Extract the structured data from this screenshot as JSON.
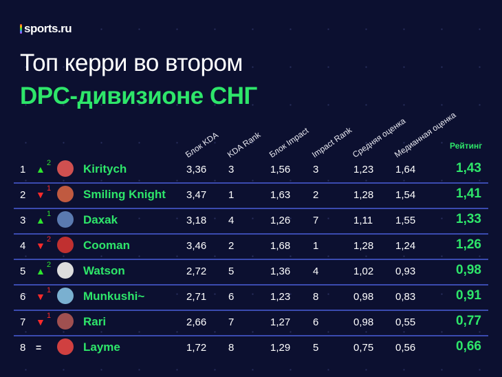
{
  "brand": "sports.ru",
  "title_line1": "Топ керри во втором",
  "title_line2": "DPC-дивизионе СНГ",
  "headers": [
    "Блок KDA",
    "KDA Rank",
    "Блок Impact",
    "Impact Rank",
    "Средняя оценка",
    "Медианная оценка",
    "Рейтинг"
  ],
  "rows": [
    {
      "rank": "1",
      "trend": "▲",
      "dir": "up",
      "change": "2",
      "name": "Kiritych",
      "kda": "3,36",
      "kda_rank": "3",
      "impact": "1,56",
      "impact_rank": "3",
      "avg": "1,23",
      "median": "1,64",
      "rating": "1,43"
    },
    {
      "rank": "2",
      "trend": "▼",
      "dir": "dn",
      "change": "1",
      "name": "Smiling Knight",
      "kda": "3,47",
      "kda_rank": "1",
      "impact": "1,63",
      "impact_rank": "2",
      "avg": "1,28",
      "median": "1,54",
      "rating": "1,41"
    },
    {
      "rank": "3",
      "trend": "▲",
      "dir": "up",
      "change": "1",
      "name": "Daxak",
      "kda": "3,18",
      "kda_rank": "4",
      "impact": "1,26",
      "impact_rank": "7",
      "avg": "1,11",
      "median": "1,55",
      "rating": "1,33"
    },
    {
      "rank": "4",
      "trend": "▼",
      "dir": "dn",
      "change": "2",
      "name": "Cooman",
      "kda": "3,46",
      "kda_rank": "2",
      "impact": "1,68",
      "impact_rank": "1",
      "avg": "1,28",
      "median": "1,24",
      "rating": "1,26"
    },
    {
      "rank": "5",
      "trend": "▲",
      "dir": "up",
      "change": "2",
      "name": "Watson",
      "kda": "2,72",
      "kda_rank": "5",
      "impact": "1,36",
      "impact_rank": "4",
      "avg": "1,02",
      "median": "0,93",
      "rating": "0,98"
    },
    {
      "rank": "6",
      "trend": "▼",
      "dir": "dn",
      "change": "1",
      "name": "Munkushi~",
      "kda": "2,71",
      "kda_rank": "6",
      "impact": "1,23",
      "impact_rank": "8",
      "avg": "0,98",
      "median": "0,83",
      "rating": "0,91"
    },
    {
      "rank": "7",
      "trend": "▼",
      "dir": "dn",
      "change": "1",
      "name": "Rari",
      "kda": "2,66",
      "kda_rank": "7",
      "impact": "1,27",
      "impact_rank": "6",
      "avg": "0,98",
      "median": "0,55",
      "rating": "0,77"
    },
    {
      "rank": "8",
      "trend": "=",
      "dir": "eq",
      "change": "",
      "name": "Layme",
      "kda": "1,72",
      "kda_rank": "8",
      "impact": "1,29",
      "impact_rank": "5",
      "avg": "0,75",
      "median": "0,56",
      "rating": "0,66"
    }
  ]
}
